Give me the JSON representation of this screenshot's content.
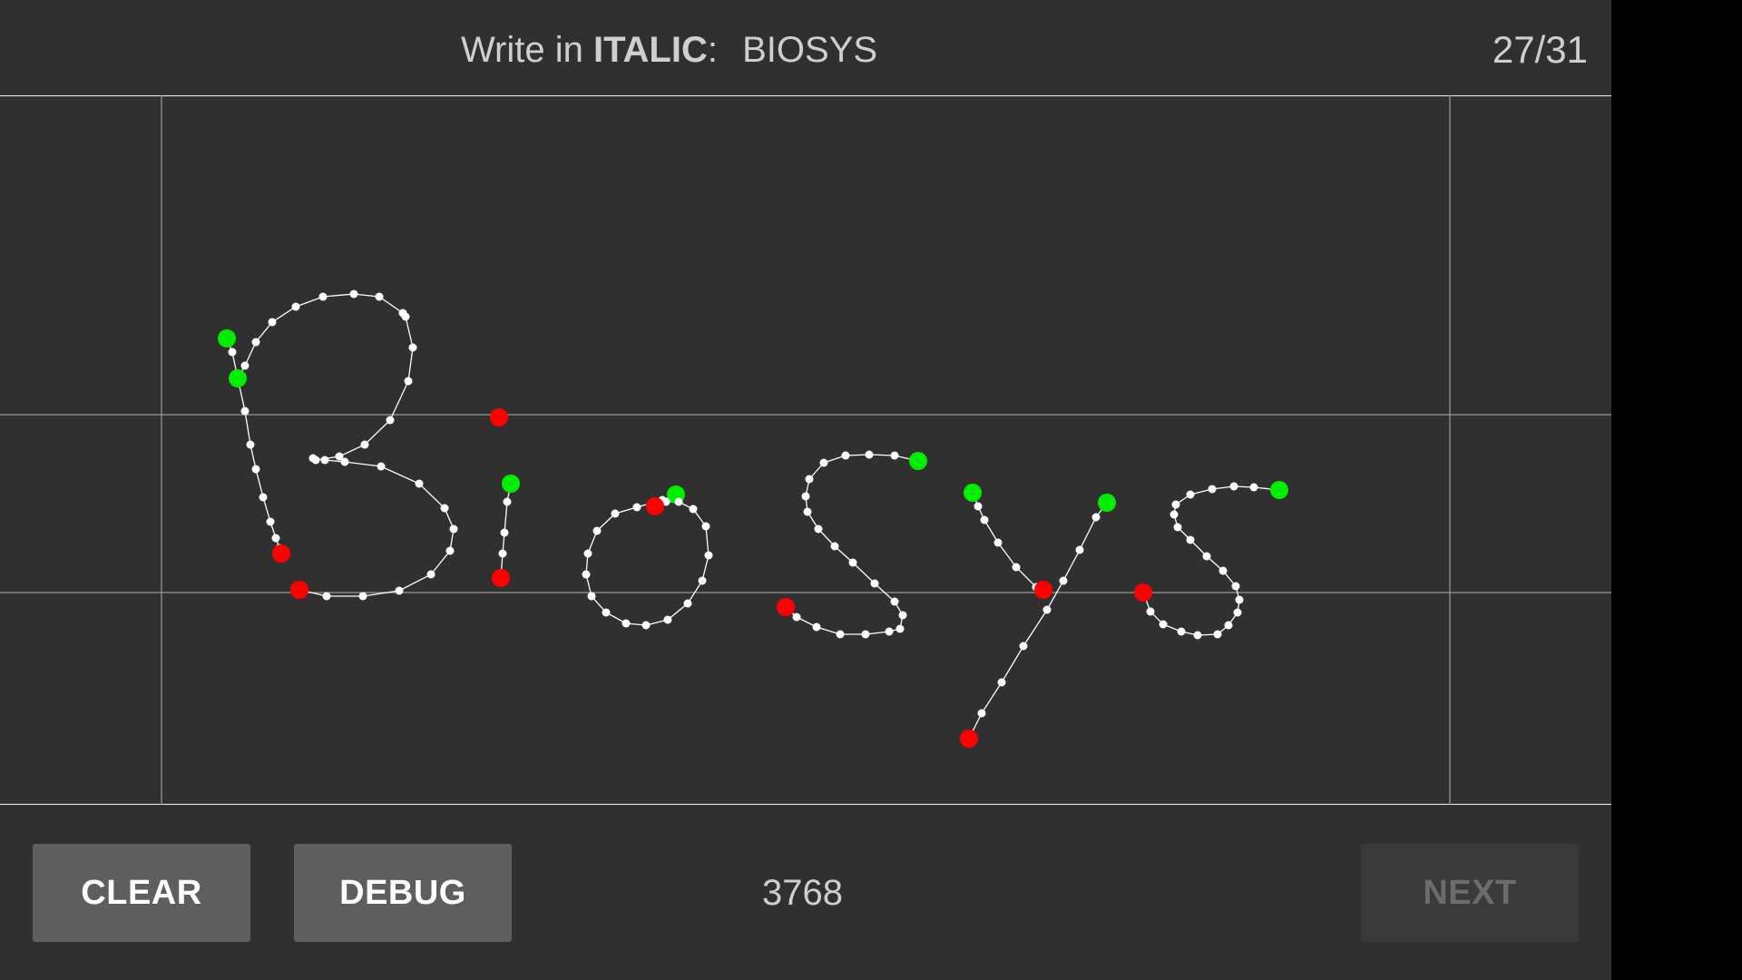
{
  "header": {
    "instruction_prefix": "Write in",
    "style_word": "ITALIC",
    "colon": ":",
    "target_word": "BIOSYS",
    "progress": "27/31"
  },
  "footer": {
    "clear_label": "CLEAR",
    "debug_label": "DEBUG",
    "point_count": "3768",
    "next_label": "NEXT"
  },
  "colors": {
    "background": "#303030",
    "stroke": "#ffffff",
    "stroke_start": "#00ee00",
    "stroke_end": "#ff0000",
    "guide_line": "#9a9a9a"
  },
  "buttons_state": {
    "next_enabled": false
  }
}
